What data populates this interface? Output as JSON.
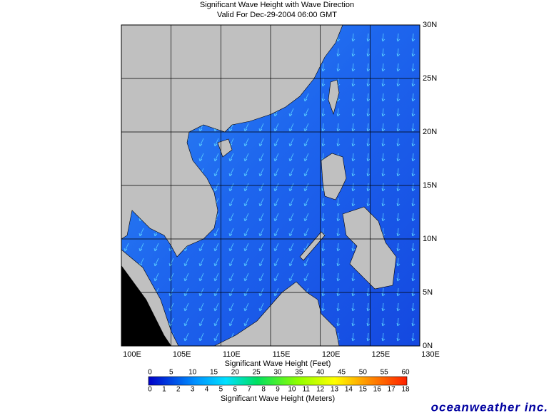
{
  "header": {
    "title": "Significant Wave Height with Wave Direction",
    "subtitle": "Valid For Dec-29-2004 06:00 GMT"
  },
  "map": {
    "lon_labels": [
      "100E",
      "105E",
      "110E",
      "115E",
      "120E",
      "125E",
      "130E"
    ],
    "lat_labels": [
      "0N",
      "5N",
      "10N",
      "15N",
      "20N",
      "25N",
      "30N"
    ]
  },
  "colorbar": {
    "feet_label": "Significant Wave Height (Feet)",
    "feet_ticks": [
      0,
      5,
      10,
      15,
      20,
      25,
      30,
      35,
      40,
      45,
      50,
      55,
      60
    ],
    "meters_ticks": [
      0,
      1,
      2,
      3,
      4,
      5,
      6,
      7,
      8,
      9,
      10,
      11,
      12,
      13,
      14,
      15,
      16,
      17,
      18
    ],
    "meters_label": "Significant Wave Height (Meters)"
  },
  "footer": {
    "brand": "oceanweather inc."
  }
}
